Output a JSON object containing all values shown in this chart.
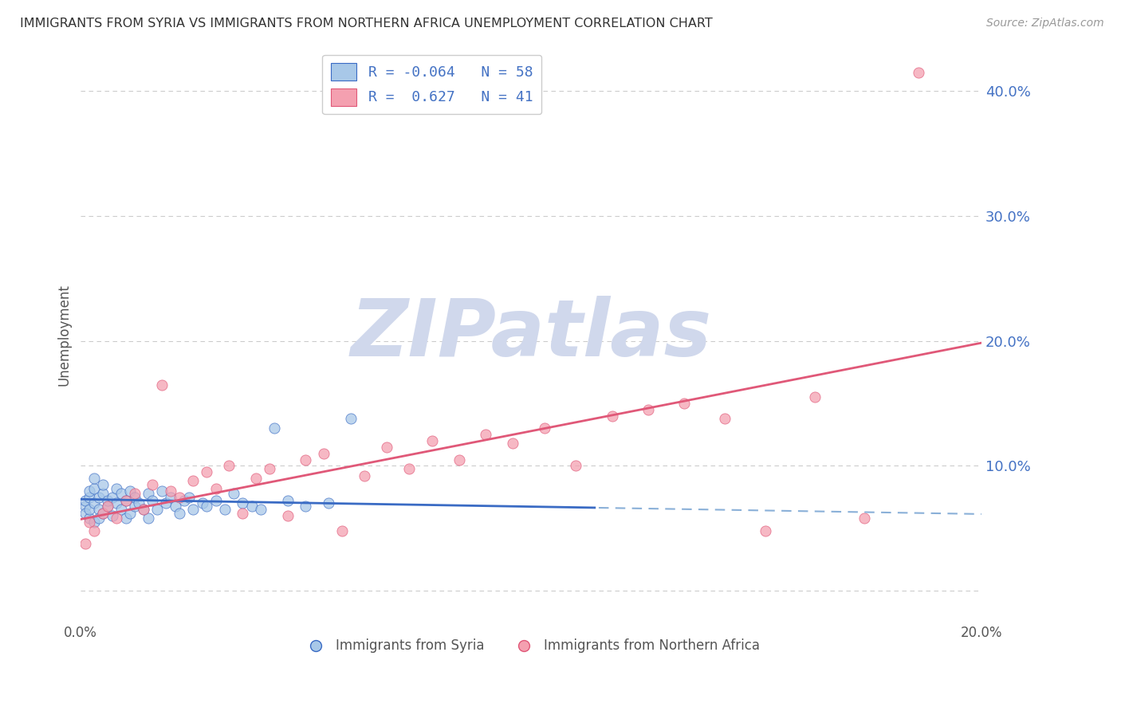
{
  "title": "IMMIGRANTS FROM SYRIA VS IMMIGRANTS FROM NORTHERN AFRICA UNEMPLOYMENT CORRELATION CHART",
  "source": "Source: ZipAtlas.com",
  "ylabel": "Unemployment",
  "xmin": 0.0,
  "xmax": 0.2,
  "ymin": -0.025,
  "ymax": 0.435,
  "yticks": [
    0.0,
    0.1,
    0.2,
    0.3,
    0.4
  ],
  "ytick_labels": [
    "",
    "10.0%",
    "20.0%",
    "30.0%",
    "40.0%"
  ],
  "xticks": [
    0.0,
    0.05,
    0.1,
    0.15,
    0.2
  ],
  "xtick_labels": [
    "0.0%",
    "",
    "",
    "",
    "20.0%"
  ],
  "legend_r1": "R = -0.064   N = 58",
  "legend_r2": "R =  0.627   N = 41",
  "series1_color": "#a8c8e8",
  "series2_color": "#f4a0b0",
  "trendline1_color": "#3a6bc4",
  "trendline2_color": "#e05878",
  "background_color": "#ffffff",
  "watermark": "ZIPatlas",
  "watermark_color": "#d0d8ec",
  "grid_color": "#cccccc",
  "right_axis_color": "#4472c4",
  "syria_x": [
    0.001,
    0.001,
    0.001,
    0.002,
    0.002,
    0.002,
    0.002,
    0.003,
    0.003,
    0.003,
    0.003,
    0.004,
    0.004,
    0.004,
    0.005,
    0.005,
    0.005,
    0.006,
    0.006,
    0.007,
    0.007,
    0.008,
    0.008,
    0.009,
    0.009,
    0.01,
    0.01,
    0.011,
    0.011,
    0.012,
    0.012,
    0.013,
    0.014,
    0.015,
    0.015,
    0.016,
    0.017,
    0.018,
    0.019,
    0.02,
    0.021,
    0.022,
    0.023,
    0.024,
    0.025,
    0.027,
    0.028,
    0.03,
    0.032,
    0.034,
    0.036,
    0.038,
    0.04,
    0.043,
    0.046,
    0.05,
    0.055,
    0.06
  ],
  "syria_y": [
    0.068,
    0.072,
    0.062,
    0.075,
    0.058,
    0.08,
    0.065,
    0.07,
    0.055,
    0.082,
    0.09,
    0.065,
    0.075,
    0.058,
    0.078,
    0.062,
    0.085,
    0.068,
    0.072,
    0.075,
    0.06,
    0.082,
    0.07,
    0.065,
    0.078,
    0.058,
    0.072,
    0.08,
    0.062,
    0.068,
    0.075,
    0.07,
    0.065,
    0.078,
    0.058,
    0.072,
    0.065,
    0.08,
    0.07,
    0.075,
    0.068,
    0.062,
    0.072,
    0.075,
    0.065,
    0.07,
    0.068,
    0.072,
    0.065,
    0.078,
    0.07,
    0.068,
    0.065,
    0.13,
    0.072,
    0.068,
    0.07,
    0.138
  ],
  "nafrica_x": [
    0.001,
    0.002,
    0.003,
    0.005,
    0.006,
    0.008,
    0.01,
    0.012,
    0.014,
    0.016,
    0.018,
    0.02,
    0.022,
    0.025,
    0.028,
    0.03,
    0.033,
    0.036,
    0.039,
    0.042,
    0.046,
    0.05,
    0.054,
    0.058,
    0.063,
    0.068,
    0.073,
    0.078,
    0.084,
    0.09,
    0.096,
    0.103,
    0.11,
    0.118,
    0.126,
    0.134,
    0.143,
    0.152,
    0.163,
    0.174,
    0.186
  ],
  "nafrica_y": [
    0.038,
    0.055,
    0.048,
    0.062,
    0.068,
    0.058,
    0.072,
    0.078,
    0.065,
    0.085,
    0.165,
    0.08,
    0.075,
    0.088,
    0.095,
    0.082,
    0.1,
    0.062,
    0.09,
    0.098,
    0.06,
    0.105,
    0.11,
    0.048,
    0.092,
    0.115,
    0.098,
    0.12,
    0.105,
    0.125,
    0.118,
    0.13,
    0.1,
    0.14,
    0.145,
    0.15,
    0.138,
    0.048,
    0.155,
    0.058,
    0.415
  ],
  "trendline1_solid_end": 0.115,
  "trendline_dashed_color": "#8ab0d8"
}
